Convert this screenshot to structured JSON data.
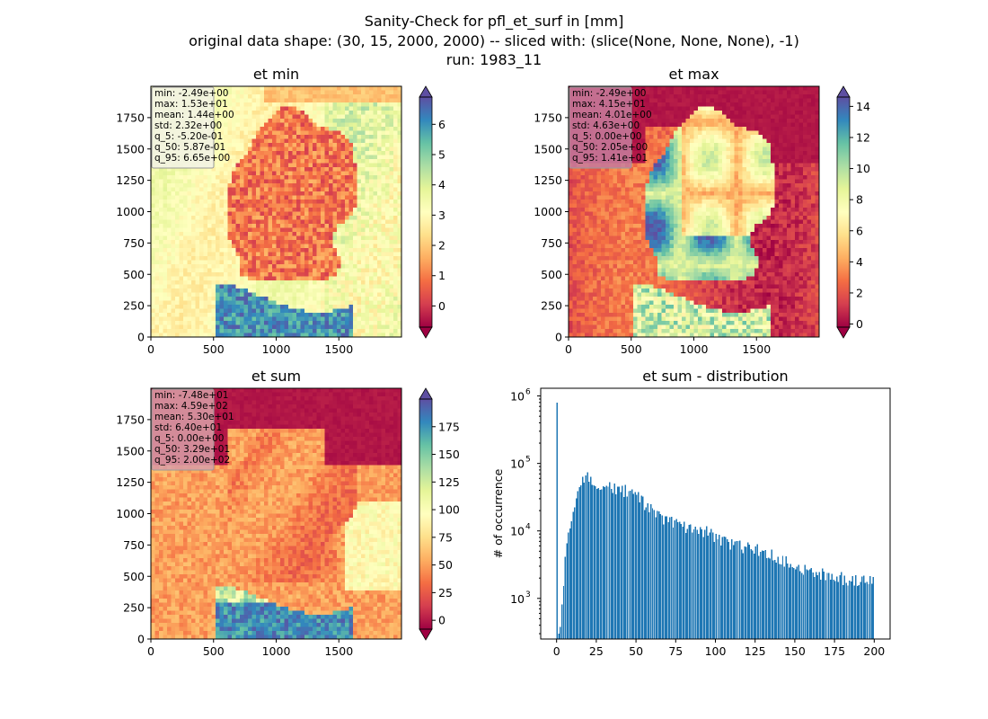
{
  "figure": {
    "title_lines": [
      "Sanity-Check for pfl_et_surf in [mm]",
      "original data shape: (30, 15, 2000, 2000) -- sliced with: (slice(None, None, None), -1)",
      "run: 1983_11"
    ]
  },
  "colors": {
    "hist_bar": "#1f77b4",
    "colormap": "Spectral (reversed as low=red, high=purple)",
    "stats_box_min": "#f2f2e6",
    "stats_box_max": "#c77e9e",
    "stats_box_sum": "#d9a0a8"
  },
  "chart_data": [
    {
      "type": "heatmap",
      "title": "et min",
      "x_ticks": [
        "0",
        "500",
        "1000",
        "1500"
      ],
      "y_ticks": [
        "0",
        "250",
        "500",
        "750",
        "1000",
        "1250",
        "1500",
        "1750"
      ],
      "xlim": [
        0,
        2000
      ],
      "ylim": [
        0,
        2000
      ],
      "colorbar": {
        "ticks": [
          "0",
          "1",
          "2",
          "3",
          "4",
          "5",
          "6"
        ],
        "range": [
          -0.7,
          6.9
        ],
        "extend": "both"
      },
      "stats": [
        "min: -2.49e+00",
        "max: 1.53e+01",
        "mean: 1.44e+00",
        "std: 2.32e+00",
        "q_5: -5.20e-01",
        "q_50: 5.87e-01",
        "q_95: 6.65e+00"
      ]
    },
    {
      "type": "heatmap",
      "title": "et max",
      "x_ticks": [
        "0",
        "500",
        "1000",
        "1500"
      ],
      "y_ticks": [
        "0",
        "250",
        "500",
        "750",
        "1000",
        "1250",
        "1500",
        "1750"
      ],
      "xlim": [
        0,
        2000
      ],
      "ylim": [
        0,
        2000
      ],
      "colorbar": {
        "ticks": [
          "0",
          "2",
          "4",
          "6",
          "8",
          "10",
          "12",
          "14"
        ],
        "range": [
          -0.2,
          14.6
        ],
        "extend": "both"
      },
      "stats": [
        "min: -2.49e+00",
        "max: 4.15e+01",
        "mean: 4.01e+00",
        "std: 4.63e+00",
        "q_5: 0.00e+00",
        "q_50: 2.05e+00",
        "q_95: 1.41e+01"
      ]
    },
    {
      "type": "heatmap",
      "title": "et sum",
      "x_ticks": [
        "0",
        "500",
        "1000",
        "1500"
      ],
      "y_ticks": [
        "0",
        "250",
        "500",
        "750",
        "1000",
        "1250",
        "1500",
        "1750"
      ],
      "xlim": [
        0,
        2000
      ],
      "ylim": [
        0,
        2000
      ],
      "colorbar": {
        "ticks": [
          "0",
          "25",
          "50",
          "75",
          "100",
          "125",
          "150",
          "175"
        ],
        "range": [
          -8,
          200
        ],
        "extend": "both"
      },
      "stats": [
        "min: -7.48e+01",
        "max: 4.59e+02",
        "mean: 5.30e+01",
        "std: 6.40e+01",
        "q_5: 0.00e+00",
        "q_50: 3.29e+01",
        "q_95: 2.00e+02"
      ]
    },
    {
      "type": "bar",
      "title": "et sum - distribution",
      "ylabel": "# of occurrence",
      "yscale": "log",
      "x_ticks": [
        "0",
        "25",
        "50",
        "75",
        "100",
        "125",
        "150",
        "175",
        "200"
      ],
      "xlim": [
        -10,
        210
      ],
      "ylim": [
        250,
        1300000
      ],
      "y_ticks": [
        {
          "base": "10",
          "exp": "3",
          "value": 1000
        },
        {
          "base": "10",
          "exp": "4",
          "value": 10000
        },
        {
          "base": "10",
          "exp": "5",
          "value": 100000
        },
        {
          "base": "10",
          "exp": "6",
          "value": 1000000
        }
      ],
      "bin_width": 1,
      "bins_start": 0,
      "profile": [
        [
          0,
          800000
        ],
        [
          1,
          300
        ],
        [
          2,
          380
        ],
        [
          3,
          800
        ],
        [
          4,
          1700
        ],
        [
          5,
          3500
        ],
        [
          6,
          6500
        ],
        [
          8,
          12000
        ],
        [
          10,
          20000
        ],
        [
          13,
          35000
        ],
        [
          16,
          52000
        ],
        [
          19,
          64000
        ],
        [
          22,
          58000
        ],
        [
          25,
          50000
        ],
        [
          30,
          46000
        ],
        [
          35,
          44000
        ],
        [
          40,
          41000
        ],
        [
          45,
          39000
        ],
        [
          48,
          36000
        ],
        [
          52,
          30000
        ],
        [
          55,
          25000
        ],
        [
          60,
          20000
        ],
        [
          65,
          16000
        ],
        [
          70,
          14000
        ],
        [
          75,
          12500
        ],
        [
          80,
          12000
        ],
        [
          85,
          11000
        ],
        [
          90,
          10500
        ],
        [
          95,
          9500
        ],
        [
          100,
          8500
        ],
        [
          105,
          7200
        ],
        [
          110,
          6500
        ],
        [
          115,
          6000
        ],
        [
          120,
          5800
        ],
        [
          125,
          5300
        ],
        [
          130,
          5000
        ],
        [
          135,
          4500
        ],
        [
          140,
          4000
        ],
        [
          145,
          3500
        ],
        [
          150,
          3100
        ],
        [
          155,
          2800
        ],
        [
          160,
          2600
        ],
        [
          165,
          2400
        ],
        [
          170,
          2200
        ],
        [
          175,
          2100
        ],
        [
          180,
          2000
        ],
        [
          185,
          1900
        ],
        [
          190,
          1850
        ],
        [
          195,
          1800
        ],
        [
          199,
          1800
        ]
      ]
    }
  ]
}
